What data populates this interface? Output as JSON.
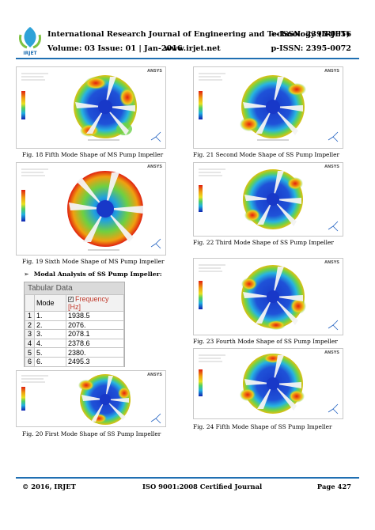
{
  "header": {
    "logo_text": "IRJET",
    "journal_title": "International Research Journal of Engineering and Technology (IRJET)",
    "eissn": "e-ISSN: 2395-0056",
    "volume": "Volume: 03 Issue: 01 | Jan-2016",
    "website": "www.irjet.net",
    "pissn": "p-ISSN: 2395-0072"
  },
  "figures": {
    "fig18": {
      "caption": "Fig. 18 Fifth Mode Shape of MS Pump Impeller"
    },
    "fig19": {
      "caption": "Fig. 19 Sixth Mode Shape of MS Pump Impeller"
    },
    "fig20": {
      "caption": "Fig. 20 First Mode Shape of SS Pump Impeller"
    },
    "fig21": {
      "caption": "Fig. 21 Second Mode Shape of SS Pump Impeller"
    },
    "fig22": {
      "caption": "Fig. 22 Third Mode Shape of SS Pump Impeller"
    },
    "fig23": {
      "caption": "Fig. 23 Fourth Mode Shape of SS Pump Impeller"
    },
    "fig24": {
      "caption": "Fig. 24 Fifth Mode Shape of SS Pump Impeller"
    },
    "ansys_label": "ANSYS"
  },
  "section": {
    "heading": "Modal Analysis of SS Pump Impeller:"
  },
  "tabular_data": {
    "title": "Tabular Data",
    "columns": [
      "Mode",
      "Frequency [Hz]"
    ],
    "rows": [
      {
        "index": "1",
        "mode": "1.",
        "frequency": "1938.5"
      },
      {
        "index": "2",
        "mode": "2.",
        "frequency": "2076."
      },
      {
        "index": "3",
        "mode": "3.",
        "frequency": "2078.1"
      },
      {
        "index": "4",
        "mode": "4.",
        "frequency": "2378.6"
      },
      {
        "index": "5",
        "mode": "5.",
        "frequency": "2380."
      },
      {
        "index": "6",
        "mode": "6.",
        "frequency": "2495.3"
      }
    ]
  },
  "footer": {
    "copyright": "© 2016, IRJET",
    "certification": "ISO 9001:2008 Certified Journal",
    "page": "Page 427"
  },
  "colors": {
    "accent": "#1f6fb2",
    "contour_blue": "#1838c8",
    "contour_red": "#e02010"
  }
}
